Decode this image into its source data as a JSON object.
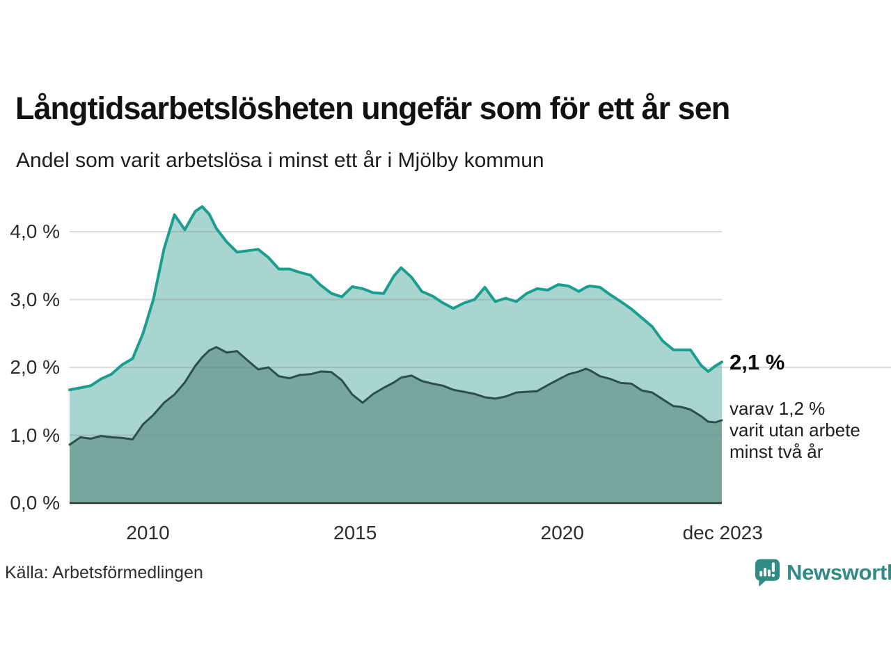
{
  "header": {
    "title": "Långtidsarbetslösheten ungefär som för ett år sen",
    "subtitle": "Andel som varit arbetslösa i minst ett år i Mjölby kommun"
  },
  "chart_data": {
    "type": "area",
    "title": "Långtidsarbetslösheten ungefär som för ett år sen",
    "subtitle": "Andel som varit arbetslösa i minst ett år i Mjölby kommun",
    "unit": "%",
    "grid": true,
    "legend_position": "none",
    "xlim": [
      2008.11,
      2023.85
    ],
    "ylim": [
      0,
      4.6
    ],
    "x_ticks": [
      {
        "label": "2010",
        "year": 2010
      },
      {
        "label": "2015",
        "year": 2015
      },
      {
        "label": "2020",
        "year": 2020
      },
      {
        "label": "dec 2023",
        "year": 2023.87
      }
    ],
    "y_ticks": [
      {
        "label": "0,0 %",
        "value": 0
      },
      {
        "label": "1,0 %",
        "value": 1
      },
      {
        "label": "2,0 %",
        "value": 2
      },
      {
        "label": "3,0 %",
        "value": 3
      },
      {
        "label": "4,0 %",
        "value": 4
      }
    ],
    "x": [
      2008.11,
      2008.37,
      2008.62,
      2008.87,
      2009.12,
      2009.38,
      2009.63,
      2009.88,
      2010.13,
      2010.39,
      2010.64,
      2010.89,
      2011.14,
      2011.31,
      2011.48,
      2011.65,
      2011.9,
      2012.15,
      2012.41,
      2012.66,
      2012.91,
      2013.16,
      2013.42,
      2013.67,
      2013.92,
      2014.17,
      2014.43,
      2014.68,
      2014.93,
      2015.18,
      2015.44,
      2015.69,
      2015.94,
      2016.11,
      2016.36,
      2016.61,
      2016.87,
      2017.12,
      2017.37,
      2017.63,
      2017.88,
      2018.13,
      2018.38,
      2018.63,
      2018.89,
      2019.14,
      2019.39,
      2019.65,
      2019.9,
      2020.15,
      2020.4,
      2020.57,
      2020.66,
      2020.91,
      2021.16,
      2021.41,
      2021.67,
      2021.92,
      2022.17,
      2022.42,
      2022.68,
      2022.84,
      2023.09,
      2023.35,
      2023.52,
      2023.69,
      2023.85
    ],
    "series": [
      {
        "name": "arbetslösa minst ett år",
        "line_color": "#1b9e90",
        "fill_color": "#a8d5cf",
        "values": [
          1.67,
          1.7,
          1.73,
          1.83,
          1.9,
          2.04,
          2.13,
          2.5,
          3.0,
          3.75,
          4.25,
          4.03,
          4.3,
          4.37,
          4.26,
          4.05,
          3.85,
          3.7,
          3.72,
          3.74,
          3.62,
          3.45,
          3.45,
          3.4,
          3.36,
          3.21,
          3.09,
          3.04,
          3.19,
          3.16,
          3.1,
          3.09,
          3.35,
          3.47,
          3.33,
          3.12,
          3.05,
          2.95,
          2.87,
          2.95,
          3.0,
          3.18,
          2.97,
          3.02,
          2.97,
          3.09,
          3.16,
          3.14,
          3.22,
          3.2,
          3.12,
          3.18,
          3.2,
          3.18,
          3.07,
          2.97,
          2.86,
          2.73,
          2.6,
          2.39,
          2.26,
          2.26,
          2.26,
          2.03,
          1.94,
          2.02,
          2.08
        ]
      },
      {
        "name": "varav utan arbete minst två år",
        "line_color": "#2d4f49",
        "fill_color": "#77a69e",
        "values": [
          0.86,
          0.97,
          0.95,
          0.99,
          0.97,
          0.96,
          0.94,
          1.16,
          1.3,
          1.48,
          1.6,
          1.78,
          2.02,
          2.15,
          2.25,
          2.3,
          2.22,
          2.24,
          2.1,
          1.97,
          2.0,
          1.87,
          1.84,
          1.89,
          1.9,
          1.94,
          1.93,
          1.81,
          1.6,
          1.48,
          1.61,
          1.7,
          1.78,
          1.85,
          1.88,
          1.8,
          1.76,
          1.73,
          1.67,
          1.64,
          1.61,
          1.56,
          1.54,
          1.57,
          1.63,
          1.64,
          1.65,
          1.74,
          1.82,
          1.9,
          1.94,
          1.98,
          1.96,
          1.87,
          1.83,
          1.77,
          1.76,
          1.66,
          1.63,
          1.53,
          1.43,
          1.42,
          1.38,
          1.28,
          1.2,
          1.19,
          1.22
        ]
      }
    ],
    "annotations": {
      "end_value_label": "2,1 %",
      "sub_label": "varav 1,2 %\nvarit utan arbete\nminst två år"
    }
  },
  "footer": {
    "source": "Källa: Arbetsförmedlingen",
    "brand": "Newsworthy"
  },
  "colors": {
    "line_total": "#1b9e90",
    "fill_total": "#a8d5cf",
    "line_two_years": "#2d4f49",
    "fill_two_years": "#77a69e",
    "gridline": "#7d7d8c",
    "baseline": "#333333",
    "brand_teal": "#2f8b84"
  }
}
